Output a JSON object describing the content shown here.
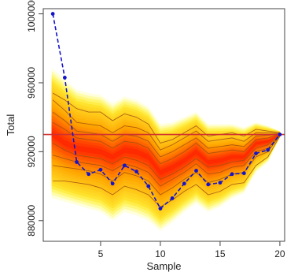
{
  "chart_data": {
    "type": "line",
    "title": "",
    "xlabel": "Sample",
    "ylabel": "Total",
    "xlim": [
      0.2,
      20.4
    ],
    "ylim": [
      868000,
      1003000
    ],
    "xticks": [
      5,
      10,
      15,
      20
    ],
    "xtick_labels": [
      "5",
      "10",
      "15",
      "20"
    ],
    "yticks": [
      880000,
      920000,
      960000,
      1000000
    ],
    "ytick_labels": [
      "880000",
      "920000",
      "960000",
      "1000000"
    ],
    "grid": false,
    "legend": "none",
    "reference_line": {
      "y": 930000,
      "color": "#d03030"
    },
    "series": [
      {
        "values": [
          1000000,
          963000,
          914000,
          907000,
          909500,
          901500,
          912000,
          908500,
          900000,
          887000,
          893000,
          901500,
          909000,
          901000,
          902000,
          907000,
          907500,
          919000,
          921000,
          930000
        ],
        "color": "#1515c8",
        "style": "dashed",
        "marker": "circle"
      }
    ],
    "x": [
      1,
      2,
      3,
      4,
      5,
      6,
      7,
      8,
      9,
      10,
      11,
      12,
      13,
      14,
      15,
      16,
      17,
      18,
      19,
      20
    ],
    "fan": {
      "outer_color": "#ffff40",
      "mid_color": "#ffa500",
      "inner_color": "#ff1a00",
      "line_color": "#a05010",
      "center": [
        930000,
        925000,
        922000,
        921000,
        920000,
        917000,
        921000,
        920000,
        917000,
        908000,
        911000,
        915000,
        920000,
        914000,
        915000,
        917000,
        917000,
        925000,
        926000,
        930000
      ],
      "quantile_lines": [
        {
          "p": 0.05,
          "values": [
            903000,
            903000,
            902000,
            901000,
            899000,
            895000,
            900000,
            898000,
            895000,
            888000,
            892000,
            897000,
            901000,
            895000,
            897000,
            901000,
            902000,
            912000,
            917000,
            929000
          ]
        },
        {
          "p": 0.15,
          "values": [
            912000,
            911000,
            910000,
            909000,
            907000,
            903000,
            908000,
            906000,
            903000,
            895000,
            899000,
            904000,
            908000,
            902000,
            904000,
            907000,
            908000,
            917000,
            920000,
            929500
          ]
        },
        {
          "p": 0.25,
          "values": [
            918000,
            916000,
            914000,
            913000,
            912000,
            909000,
            913000,
            911000,
            908000,
            900000,
            904000,
            908000,
            913000,
            907000,
            908000,
            911000,
            912000,
            920000,
            922000,
            929700
          ]
        },
        {
          "p": 0.35,
          "values": [
            925000,
            921000,
            918000,
            917000,
            916000,
            913000,
            917000,
            915000,
            912000,
            904000,
            907000,
            911000,
            916000,
            911000,
            912000,
            914000,
            915000,
            922000,
            924000,
            929800
          ]
        },
        {
          "p": 0.65,
          "values": [
            937000,
            933000,
            928000,
            927000,
            926000,
            922000,
            926000,
            925000,
            922000,
            913000,
            916000,
            920000,
            925000,
            919000,
            920000,
            921000,
            920000,
            927000,
            928000,
            930200
          ]
        },
        {
          "p": 0.75,
          "values": [
            943000,
            938000,
            932000,
            931000,
            930000,
            926000,
            930000,
            929000,
            926000,
            917000,
            920000,
            924000,
            928000,
            922000,
            923000,
            924000,
            923000,
            929000,
            929500,
            930300
          ]
        },
        {
          "p": 0.85,
          "values": [
            950000,
            944000,
            937000,
            936000,
            935000,
            931000,
            935000,
            934000,
            931000,
            921000,
            924000,
            928000,
            932000,
            926000,
            927000,
            928000,
            926000,
            931000,
            931000,
            930500
          ]
        },
        {
          "p": 0.95,
          "values": [
            954000,
            950000,
            945000,
            943000,
            943000,
            938000,
            942000,
            940000,
            936000,
            925000,
            927000,
            931000,
            935000,
            929000,
            930000,
            931000,
            929000,
            933000,
            932000,
            931000
          ]
        }
      ],
      "band_ranges": [
        {
          "p": 0.05,
          "values": [
            893000,
            891000,
            889000,
            887000,
            885000,
            880000,
            885000,
            883000,
            880000,
            874000,
            879000,
            885000,
            890000,
            885000,
            888000,
            893000,
            896000,
            908000,
            914000,
            928000
          ]
        },
        {
          "p": 0.95,
          "values": [
            968000,
            962000,
            956000,
            954000,
            953000,
            948000,
            952000,
            950000,
            946000,
            936000,
            937000,
            940000,
            943000,
            936000,
            936000,
            936000,
            934000,
            937000,
            935000,
            932000
          ]
        }
      ]
    }
  }
}
